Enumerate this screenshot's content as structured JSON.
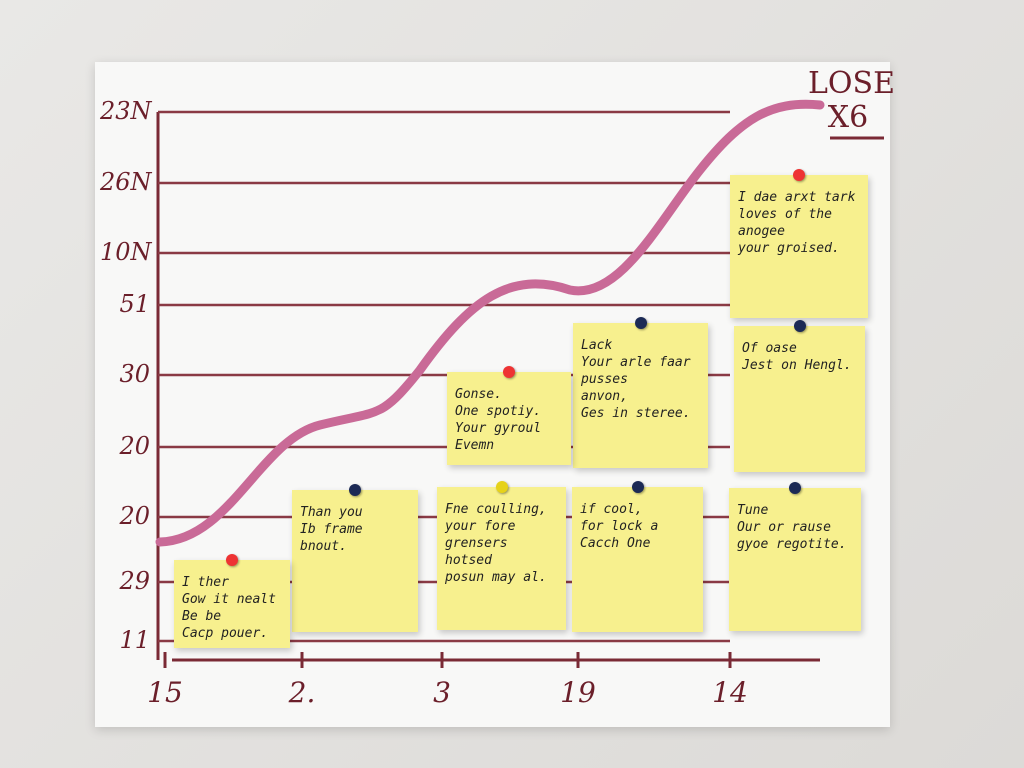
{
  "corner_label": [
    "LOSE",
    "X6"
  ],
  "y_axis_labels": [
    "23N",
    "26N",
    "10N",
    "51",
    "30",
    "20",
    "20",
    "29",
    "11"
  ],
  "x_axis_labels": [
    "15",
    "2.",
    "3",
    "19",
    "14"
  ],
  "notes": [
    {
      "lines": [
        "I dae arxt tark",
        "loves of the",
        "anogee",
        "your groised."
      ]
    },
    {
      "lines": [
        "Lack",
        "Your arle faar",
        "pusses",
        "anvon,",
        "Ges in steree."
      ]
    },
    {
      "lines": [
        "Gonse.",
        "One spotiy.",
        "Your gyroul",
        "Evemn"
      ]
    },
    {
      "lines": [
        "Of oase",
        "Jest on Hengl."
      ]
    },
    {
      "lines": [
        "Than you",
        "Ib frame bnout."
      ]
    },
    {
      "lines": [
        "Fne coulling,",
        "your fore grensers",
        "hotsed",
        "posun may al."
      ]
    },
    {
      "lines": [
        "if cool,",
        "for lock a",
        "Cacch One"
      ]
    },
    {
      "lines": [
        "Tune",
        "Our or rause",
        "gyoe regotite."
      ]
    },
    {
      "lines": [
        "I ther",
        "Gow it nealt",
        "Be be",
        "Cacp pouer."
      ]
    }
  ]
}
